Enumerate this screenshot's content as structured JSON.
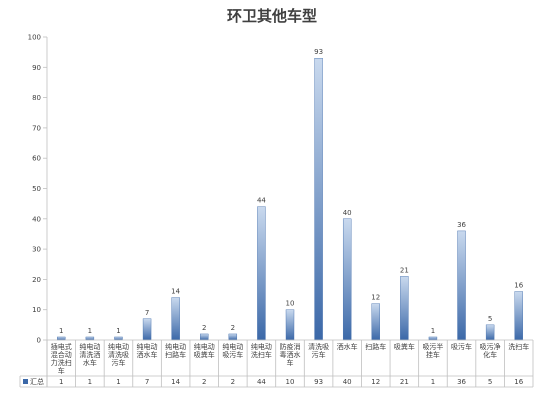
{
  "chart_data": {
    "type": "bar",
    "title": "环卫其他车型",
    "categories": [
      "插电式混合动力洗扫车",
      "纯电动清洗洒水车",
      "纯电动清洗吸污车",
      "纯电动洒水车",
      "纯电动扫路车",
      "纯电动吸粪车",
      "纯电动吸污车",
      "纯电动洗扫车",
      "防疫消毒洒水车",
      "清洗吸污车",
      "洒水车",
      "扫路车",
      "吸粪车",
      "吸污半挂车",
      "吸污车",
      "吸污净化车",
      "洗扫车"
    ],
    "series": [
      {
        "name": "汇总",
        "values": [
          1,
          1,
          1,
          7,
          14,
          2,
          2,
          44,
          10,
          93,
          40,
          12,
          21,
          1,
          36,
          5,
          16
        ]
      }
    ],
    "ylim": [
      0,
      100
    ],
    "yticks": [
      0,
      10,
      20,
      30,
      40,
      50,
      60,
      70,
      80,
      90,
      100
    ],
    "grid": false,
    "legend": "bottom-left",
    "data_table": true,
    "colors": {
      "bar_light": "#c9d9ee",
      "bar_dark": "#3b68a8",
      "axis": "#bfbfbf",
      "text": "#404040"
    }
  }
}
